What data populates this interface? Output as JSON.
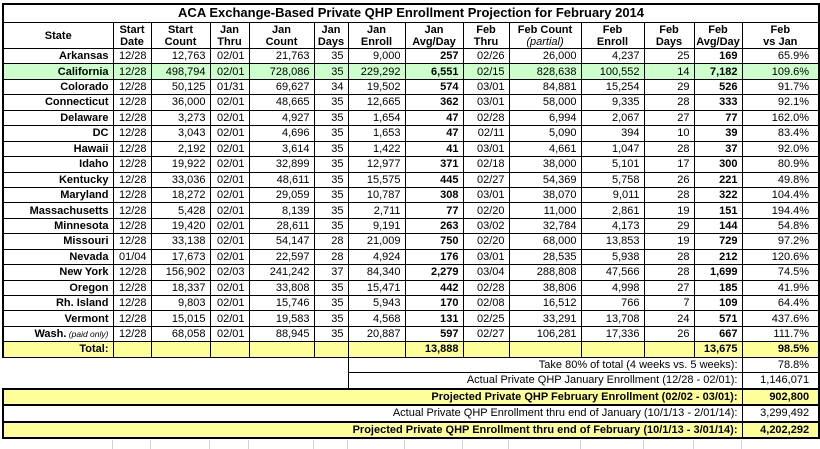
{
  "table": {
    "title": "ACA Exchange-Based Private QHP Enrollment Projection for February 2014",
    "headers": [
      {
        "key": "state",
        "line1": "State"
      },
      {
        "key": "start_date",
        "line1": "Start",
        "line2": "Date"
      },
      {
        "key": "start_count",
        "line1": "Start",
        "line2": "Count"
      },
      {
        "key": "jan_thru",
        "line1": "Jan",
        "line2": "Thru"
      },
      {
        "key": "jan_count",
        "line1": "Jan",
        "line2": "Count"
      },
      {
        "key": "jan_days",
        "line1": "Jan",
        "line2": "Days"
      },
      {
        "key": "jan_enroll",
        "line1": "Jan",
        "line2": "Enroll"
      },
      {
        "key": "jan_avg",
        "line1": "Jan",
        "line2": "Avg/Day"
      },
      {
        "key": "feb_thru",
        "line1": "Feb",
        "line2": "Thru"
      },
      {
        "key": "feb_count",
        "line1": "Feb Count",
        "line2": "(partial)",
        "italic2": true
      },
      {
        "key": "feb_enroll",
        "line1": "Feb",
        "line2": "Enroll"
      },
      {
        "key": "feb_days",
        "line1": "Feb",
        "line2": "Days"
      },
      {
        "key": "feb_avg",
        "line1": "Feb",
        "line2": "Avg/Day"
      },
      {
        "key": "feb_vs_jan",
        "line1": "Feb",
        "line2": "vs Jan"
      }
    ],
    "rows": [
      {
        "state": "Arkansas",
        "start_date": "12/28",
        "start_count": "12,763",
        "jan_thru": "02/01",
        "jan_count": "21,763",
        "jan_days": "35",
        "jan_enroll": "9,000",
        "jan_avg": "257",
        "feb_thru": "02/26",
        "feb_count": "26,000",
        "feb_enroll": "4,237",
        "feb_days": "25",
        "feb_avg": "169",
        "feb_vs_jan": "65.9%"
      },
      {
        "state": "California",
        "highlight": true,
        "start_date": "12/28",
        "start_count": "498,794",
        "jan_thru": "02/01",
        "jan_count": "728,086",
        "jan_days": "35",
        "jan_enroll": "229,292",
        "jan_avg": "6,551",
        "feb_thru": "02/15",
        "feb_count": "828,638",
        "feb_enroll": "100,552",
        "feb_days": "14",
        "feb_avg": "7,182",
        "feb_vs_jan": "109.6%"
      },
      {
        "state": "Colorado",
        "start_date": "12/28",
        "start_count": "50,125",
        "jan_thru": "01/31",
        "jan_count": "69,627",
        "jan_days": "34",
        "jan_enroll": "19,502",
        "jan_avg": "574",
        "feb_thru": "03/01",
        "feb_count": "84,881",
        "feb_enroll": "15,254",
        "feb_days": "29",
        "feb_avg": "526",
        "feb_vs_jan": "91.7%"
      },
      {
        "state": "Connecticut",
        "start_date": "12/28",
        "start_count": "36,000",
        "jan_thru": "02/01",
        "jan_count": "48,665",
        "jan_days": "35",
        "jan_enroll": "12,665",
        "jan_avg": "362",
        "feb_thru": "03/01",
        "feb_count": "58,000",
        "feb_enroll": "9,335",
        "feb_days": "28",
        "feb_avg": "333",
        "feb_vs_jan": "92.1%"
      },
      {
        "state": "Delaware",
        "start_date": "12/28",
        "start_count": "3,273",
        "jan_thru": "02/01",
        "jan_count": "4,927",
        "jan_days": "35",
        "jan_enroll": "1,654",
        "jan_avg": "47",
        "feb_thru": "02/28",
        "feb_count": "6,994",
        "feb_enroll": "2,067",
        "feb_days": "27",
        "feb_avg": "77",
        "feb_vs_jan": "162.0%"
      },
      {
        "state": "DC",
        "start_date": "12/28",
        "start_count": "3,043",
        "jan_thru": "02/01",
        "jan_count": "4,696",
        "jan_days": "35",
        "jan_enroll": "1,653",
        "jan_avg": "47",
        "feb_thru": "02/11",
        "feb_count": "5,090",
        "feb_enroll": "394",
        "feb_days": "10",
        "feb_avg": "39",
        "feb_vs_jan": "83.4%"
      },
      {
        "state": "Hawaii",
        "start_date": "12/28",
        "start_count": "2,192",
        "jan_thru": "02/01",
        "jan_count": "3,614",
        "jan_days": "35",
        "jan_enroll": "1,422",
        "jan_avg": "41",
        "feb_thru": "03/01",
        "feb_count": "4,661",
        "feb_enroll": "1,047",
        "feb_days": "28",
        "feb_avg": "37",
        "feb_vs_jan": "92.0%"
      },
      {
        "state": "Idaho",
        "start_date": "12/28",
        "start_count": "19,922",
        "jan_thru": "02/01",
        "jan_count": "32,899",
        "jan_days": "35",
        "jan_enroll": "12,977",
        "jan_avg": "371",
        "feb_thru": "02/18",
        "feb_count": "38,000",
        "feb_enroll": "5,101",
        "feb_days": "17",
        "feb_avg": "300",
        "feb_vs_jan": "80.9%"
      },
      {
        "state": "Kentucky",
        "start_date": "12/28",
        "start_count": "33,036",
        "jan_thru": "02/01",
        "jan_count": "48,611",
        "jan_days": "35",
        "jan_enroll": "15,575",
        "jan_avg": "445",
        "feb_thru": "02/27",
        "feb_count": "54,369",
        "feb_enroll": "5,758",
        "feb_days": "26",
        "feb_avg": "221",
        "feb_vs_jan": "49.8%"
      },
      {
        "state": "Maryland",
        "start_date": "12/28",
        "start_count": "18,272",
        "jan_thru": "02/01",
        "jan_count": "29,059",
        "jan_days": "35",
        "jan_enroll": "10,787",
        "jan_avg": "308",
        "feb_thru": "03/01",
        "feb_count": "38,070",
        "feb_enroll": "9,011",
        "feb_days": "28",
        "feb_avg": "322",
        "feb_vs_jan": "104.4%"
      },
      {
        "state": "Massachusetts",
        "start_date": "12/28",
        "start_count": "5,428",
        "jan_thru": "02/01",
        "jan_count": "8,139",
        "jan_days": "35",
        "jan_enroll": "2,711",
        "jan_avg": "77",
        "feb_thru": "02/20",
        "feb_count": "11,000",
        "feb_enroll": "2,861",
        "feb_days": "19",
        "feb_avg": "151",
        "feb_vs_jan": "194.4%"
      },
      {
        "state": "Minnesota",
        "start_date": "12/28",
        "start_count": "19,420",
        "jan_thru": "02/01",
        "jan_count": "28,611",
        "jan_days": "35",
        "jan_enroll": "9,191",
        "jan_avg": "263",
        "feb_thru": "03/02",
        "feb_count": "32,784",
        "feb_enroll": "4,173",
        "feb_days": "29",
        "feb_avg": "144",
        "feb_vs_jan": "54.8%"
      },
      {
        "state": "Missouri",
        "start_date": "12/28",
        "start_count": "33,138",
        "jan_thru": "02/01",
        "jan_count": "54,147",
        "jan_days": "28",
        "jan_enroll": "21,009",
        "jan_avg": "750",
        "feb_thru": "02/20",
        "feb_count": "68,000",
        "feb_enroll": "13,853",
        "feb_days": "19",
        "feb_avg": "729",
        "feb_vs_jan": "97.2%"
      },
      {
        "state": "Nevada",
        "start_date": "01/04",
        "start_count": "17,673",
        "jan_thru": "02/01",
        "jan_count": "22,597",
        "jan_days": "28",
        "jan_enroll": "4,924",
        "jan_avg": "176",
        "feb_thru": "03/01",
        "feb_count": "28,535",
        "feb_enroll": "5,938",
        "feb_days": "28",
        "feb_avg": "212",
        "feb_vs_jan": "120.6%"
      },
      {
        "state": "New York",
        "start_date": "12/28",
        "start_count": "156,902",
        "jan_thru": "02/03",
        "jan_count": "241,242",
        "jan_days": "37",
        "jan_enroll": "84,340",
        "jan_avg": "2,279",
        "feb_thru": "03/04",
        "feb_count": "288,808",
        "feb_enroll": "47,566",
        "feb_days": "28",
        "feb_avg": "1,699",
        "feb_vs_jan": "74.5%"
      },
      {
        "state": "Oregon",
        "start_date": "12/28",
        "start_count": "18,337",
        "jan_thru": "02/01",
        "jan_count": "33,808",
        "jan_days": "35",
        "jan_enroll": "15,471",
        "jan_avg": "442",
        "feb_thru": "02/28",
        "feb_count": "38,806",
        "feb_enroll": "4,998",
        "feb_days": "27",
        "feb_avg": "185",
        "feb_vs_jan": "41.9%"
      },
      {
        "state": "Rh. Island",
        "start_date": "12/28",
        "start_count": "9,803",
        "jan_thru": "02/01",
        "jan_count": "15,746",
        "jan_days": "35",
        "jan_enroll": "5,943",
        "jan_avg": "170",
        "feb_thru": "02/08",
        "feb_count": "16,512",
        "feb_enroll": "766",
        "feb_days": "7",
        "feb_avg": "109",
        "feb_vs_jan": "64.4%"
      },
      {
        "state": "Vermont",
        "start_date": "12/28",
        "start_count": "15,015",
        "jan_thru": "02/01",
        "jan_count": "19,583",
        "jan_days": "35",
        "jan_enroll": "4,568",
        "jan_avg": "131",
        "feb_thru": "02/25",
        "feb_count": "33,291",
        "feb_enroll": "13,708",
        "feb_days": "24",
        "feb_avg": "571",
        "feb_vs_jan": "437.6%"
      },
      {
        "state": "Wash.",
        "note": "(paid only)",
        "start_date": "12/28",
        "start_count": "68,058",
        "jan_thru": "02/01",
        "jan_count": "88,945",
        "jan_days": "35",
        "jan_enroll": "20,887",
        "jan_avg": "597",
        "feb_thru": "02/27",
        "feb_count": "106,281",
        "feb_enroll": "17,336",
        "feb_days": "26",
        "feb_avg": "667",
        "feb_vs_jan": "111.7%"
      }
    ],
    "total": {
      "state": "Total:",
      "start_date": "",
      "start_count": "",
      "jan_thru": "",
      "jan_count": "",
      "jan_days": "",
      "jan_enroll": "",
      "jan_avg": "13,888",
      "feb_thru": "",
      "feb_count": "",
      "feb_enroll": "",
      "feb_days": "",
      "feb_avg": "13,675",
      "feb_vs_jan": "98.5%"
    },
    "summary": [
      {
        "label": "Take 80% of total (4 weeks vs. 5 weeks):",
        "value": "78.8%",
        "span": "partial",
        "highlight": false
      },
      {
        "label": "Actual Private QHP January Enrollment (12/28 - 02/01):",
        "value": "1,146,071",
        "span": "partial",
        "highlight": false
      },
      {
        "label": "Projected Private QHP February Enrollment (02/02 - 03/01):",
        "value": "902,800",
        "span": "full",
        "highlight": true
      },
      {
        "label": "Actual Private QHP Enrollment thru end of January (10/1/13 - 2/01/14):",
        "value": "3,299,492",
        "span": "full",
        "highlight": false
      },
      {
        "label": "Projected Private QHP Enrollment thru end of February (10/1/13 - 3/01/14):",
        "value": "4,202,292",
        "span": "full",
        "highlight": true
      }
    ],
    "colors": {
      "highlight_green": "#ccffcc",
      "highlight_yellow": "#ffff99",
      "border": "#000000",
      "gridline": "#d4d4d4"
    }
  }
}
